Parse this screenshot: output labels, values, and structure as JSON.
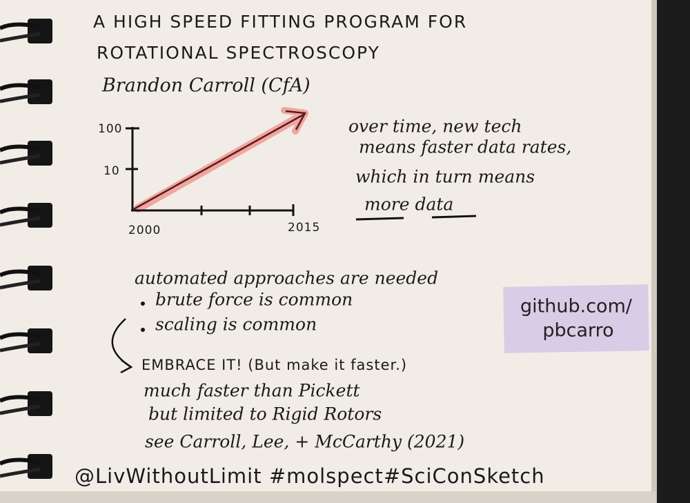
{
  "title": [
    "A HIGH SPEED FITTING PROGRAM FOR",
    "ROTATIONAL SPECTROSCOPY"
  ],
  "author": "Brandon Carroll (CfA)",
  "sketch": {
    "y_labels": [
      "100",
      "10"
    ],
    "x_labels": [
      "2000",
      "2015"
    ]
  },
  "note": [
    "over time, new tech",
    "means faster data rates,",
    "which in turn means",
    "more data"
  ],
  "section": {
    "heading": "automated approaches are needed",
    "bullets": [
      "brute force is common",
      "scaling is common"
    ],
    "lines": [
      "EMBRACE IT! (But make it faster.)",
      "much faster than Pickett",
      "but limited to Rigid Rotors",
      "see Carroll, Lee, + McCarthy (2021)"
    ]
  },
  "sticker": [
    "github.com/",
    "pbcarro"
  ],
  "footer": "@LivWithoutLimit #molspect#SciConSketch"
}
